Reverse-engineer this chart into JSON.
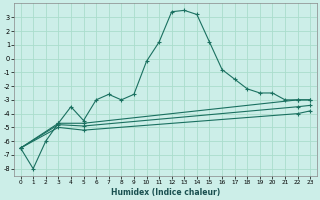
{
  "xlabel": "Humidex (Indice chaleur)",
  "background_color": "#cceee8",
  "grid_color": "#aaddcc",
  "line_color": "#1a7060",
  "xlim": [
    -0.5,
    23.5
  ],
  "ylim": [
    -8.5,
    4.0
  ],
  "xticks": [
    0,
    1,
    2,
    3,
    4,
    5,
    6,
    7,
    8,
    9,
    10,
    11,
    12,
    13,
    14,
    15,
    16,
    17,
    18,
    19,
    20,
    21,
    22,
    23
  ],
  "yticks": [
    -8,
    -7,
    -6,
    -5,
    -4,
    -3,
    -2,
    -1,
    0,
    1,
    2,
    3
  ],
  "line1_x": [
    0,
    1,
    2,
    3,
    4,
    5,
    6,
    7,
    8,
    9,
    10,
    11,
    12,
    13,
    14,
    15,
    16,
    17,
    18,
    19,
    20,
    21,
    22,
    23
  ],
  "line1_y": [
    -6.5,
    -8.0,
    -6.0,
    -4.7,
    -3.5,
    -4.5,
    -3.0,
    -2.6,
    -3.0,
    -2.6,
    -0.2,
    1.2,
    3.4,
    3.5,
    3.2,
    1.2,
    -0.8,
    -1.5,
    -2.2,
    -2.5,
    -2.5,
    -3.0,
    -3.0,
    -3.0
  ],
  "line2_x": [
    0,
    3,
    5,
    22,
    23
  ],
  "line2_y": [
    -6.5,
    -4.7,
    -4.7,
    -3.0,
    -3.0
  ],
  "line3_x": [
    0,
    3,
    5,
    22,
    23
  ],
  "line3_y": [
    -6.5,
    -4.8,
    -4.9,
    -3.5,
    -3.4
  ],
  "line4_x": [
    0,
    3,
    5,
    22,
    23
  ],
  "line4_y": [
    -6.5,
    -5.0,
    -5.2,
    -4.0,
    -3.8
  ]
}
